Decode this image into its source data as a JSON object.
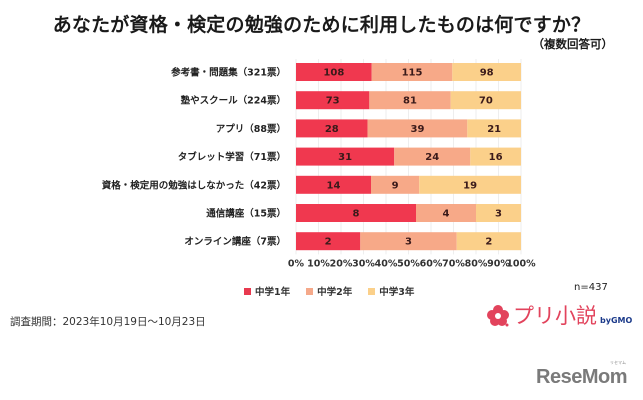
{
  "header": {
    "title": "あなたが資格・検定の勉強のために利用したものは何ですか？",
    "subtitle": "（複数回答可）"
  },
  "chart_data": {
    "type": "bar",
    "orientation": "horizontal",
    "stacked": "percent",
    "title": "あなたが資格・検定の勉強のために利用したものは何ですか？",
    "subtitle": "（複数回答可）",
    "categories": [
      "参考書・問題集（321票）",
      "塾やスクール（224票）",
      "アプリ（88票）",
      "タブレット学習（71票）",
      "資格・検定用の勉強はしなかった（42票）",
      "通信講座（15票）",
      "オンライン講座（7票）"
    ],
    "series": [
      {
        "name": "中学1年",
        "color": "#f0384f",
        "values": [
          108,
          73,
          28,
          31,
          14,
          8,
          2
        ]
      },
      {
        "name": "中学2年",
        "color": "#f7a988",
        "values": [
          115,
          81,
          39,
          24,
          9,
          4,
          3
        ]
      },
      {
        "name": "中学3年",
        "color": "#fbd08a",
        "values": [
          98,
          70,
          21,
          16,
          19,
          3,
          2
        ]
      }
    ],
    "x_ticks": [
      "0%",
      "10%",
      "20%",
      "30%",
      "40%",
      "50%",
      "60%",
      "70%",
      "80%",
      "90%",
      "100%"
    ],
    "xlim": [
      0,
      100
    ],
    "grid": true,
    "legend": "bottom",
    "xlabel": "",
    "ylabel": ""
  },
  "legend": {
    "items": [
      {
        "label": "中学1年",
        "color": "#e8394f"
      },
      {
        "label": "中学2年",
        "color": "#f5a98a"
      },
      {
        "label": "中学3年",
        "color": "#fbd08a"
      }
    ]
  },
  "footer": {
    "n": "n=437",
    "period": "調査期間：2023年10月19日～10月23日",
    "brand": "プリ小説",
    "brand_by": "byGMO",
    "source_logo": "ReseMom",
    "source_ruby": "リセマム"
  }
}
